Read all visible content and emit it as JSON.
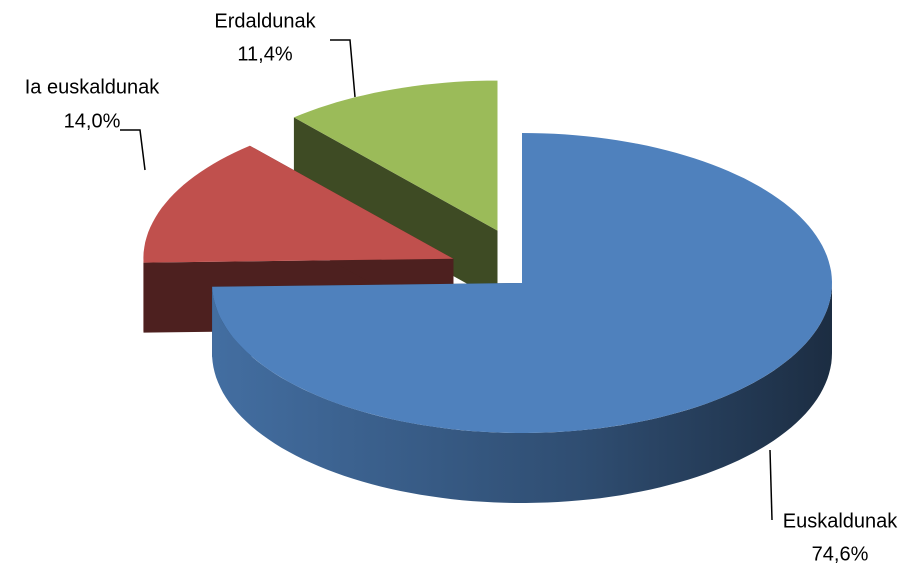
{
  "chart_data": {
    "type": "pie",
    "categories": [
      "Euskaldunak",
      "Ia euskaldunak",
      "Erdaldunak"
    ],
    "values": [
      74.6,
      14.0,
      11.4
    ],
    "value_labels": [
      "74,6%",
      "14,0%",
      "11,4%"
    ],
    "colors": [
      "#4f81bd",
      "#c0504d",
      "#9bbb59"
    ]
  }
}
